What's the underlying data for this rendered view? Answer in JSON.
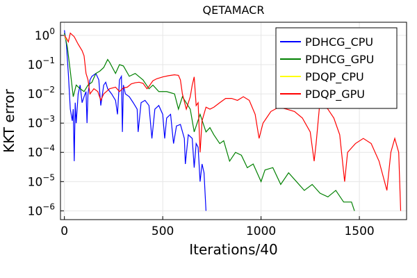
{
  "chart_data": {
    "type": "line",
    "title": "QETAMACR",
    "xlabel": "Iterations/40",
    "ylabel": "KKT error",
    "yscale": "log10",
    "xlim": [
      -20,
      1740
    ],
    "ylim_exp": [
      -6.3,
      0.45
    ],
    "xticks": [
      0,
      500,
      1000,
      1500
    ],
    "yticks": [
      {
        "exp": 0,
        "base": "10",
        "sup": "0"
      },
      {
        "exp": -1,
        "base": "10",
        "sup": "−1"
      },
      {
        "exp": -2,
        "base": "10",
        "sup": "−2"
      },
      {
        "exp": -3,
        "base": "10",
        "sup": "−3"
      },
      {
        "exp": -4,
        "base": "10",
        "sup": "−4"
      },
      {
        "exp": -5,
        "base": "10",
        "sup": "−5"
      },
      {
        "exp": -6,
        "base": "10",
        "sup": "−6"
      }
    ],
    "grid": true,
    "legend_position": "top-right",
    "series": [
      {
        "name": "PDHCG_CPU",
        "color": "#0000ff",
        "points": [
          [
            0,
            1.5
          ],
          [
            10,
            0.5
          ],
          [
            20,
            0.05
          ],
          [
            30,
            0.003
          ],
          [
            40,
            0.0012
          ],
          [
            45,
            0.003
          ],
          [
            50,
            5e-05
          ],
          [
            55,
            0.005
          ],
          [
            60,
            0.001
          ],
          [
            70,
            0.01
          ],
          [
            80,
            0.02
          ],
          [
            90,
            0.005
          ],
          [
            100,
            0.008
          ],
          [
            110,
            0.012
          ],
          [
            115,
            0.001
          ],
          [
            120,
            0.01
          ],
          [
            130,
            0.03
          ],
          [
            140,
            0.04
          ],
          [
            160,
            0.05
          ],
          [
            175,
            0.03
          ],
          [
            185,
            0.004
          ],
          [
            200,
            0.02
          ],
          [
            210,
            0.025
          ],
          [
            220,
            0.015
          ],
          [
            240,
            0.01
          ],
          [
            260,
            0.006
          ],
          [
            270,
            0.002
          ],
          [
            280,
            0.03
          ],
          [
            290,
            0.04
          ],
          [
            295,
            0.0005
          ],
          [
            300,
            0.02
          ],
          [
            310,
            0.01
          ],
          [
            330,
            0.008
          ],
          [
            350,
            0.005
          ],
          [
            370,
            0.003
          ],
          [
            375,
            0.0005
          ],
          [
            390,
            0.005
          ],
          [
            410,
            0.006
          ],
          [
            430,
            0.004
          ],
          [
            445,
            0.0003
          ],
          [
            460,
            0.003
          ],
          [
            480,
            0.004
          ],
          [
            500,
            0.002
          ],
          [
            510,
            0.0003
          ],
          [
            520,
            0.0015
          ],
          [
            540,
            0.002
          ],
          [
            555,
            0.0002
          ],
          [
            570,
            0.0008
          ],
          [
            590,
            0.0009
          ],
          [
            610,
            0.0003
          ],
          [
            615,
            4e-05
          ],
          [
            630,
            0.0004
          ],
          [
            650,
            0.0003
          ],
          [
            660,
            3e-05
          ],
          [
            670,
            0.0002
          ],
          [
            680,
            0.00015
          ],
          [
            690,
            1e-05
          ],
          [
            700,
            4e-05
          ],
          [
            710,
            2e-05
          ],
          [
            720,
            1e-06
          ]
        ]
      },
      {
        "name": "PDHCG_GPU",
        "color": "#008000",
        "points": [
          [
            0,
            1.2
          ],
          [
            15,
            0.4
          ],
          [
            30,
            0.06
          ],
          [
            45,
            0.008
          ],
          [
            60,
            0.02
          ],
          [
            80,
            0.015
          ],
          [
            100,
            0.012
          ],
          [
            120,
            0.02
          ],
          [
            140,
            0.025
          ],
          [
            160,
            0.05
          ],
          [
            180,
            0.06
          ],
          [
            200,
            0.08
          ],
          [
            220,
            0.15
          ],
          [
            230,
            0.12
          ],
          [
            260,
            0.05
          ],
          [
            280,
            0.1
          ],
          [
            300,
            0.09
          ],
          [
            330,
            0.04
          ],
          [
            360,
            0.05
          ],
          [
            400,
            0.03
          ],
          [
            430,
            0.015
          ],
          [
            450,
            0.02
          ],
          [
            480,
            0.012
          ],
          [
            520,
            0.012
          ],
          [
            560,
            0.01
          ],
          [
            580,
            0.003
          ],
          [
            600,
            0.008
          ],
          [
            640,
            0.003
          ],
          [
            660,
            0.0005
          ],
          [
            690,
            0.002
          ],
          [
            720,
            0.0005
          ],
          [
            740,
            0.0007
          ],
          [
            760,
            0.0004
          ],
          [
            790,
            0.0002
          ],
          [
            810,
            0.00025
          ],
          [
            840,
            5e-05
          ],
          [
            870,
            0.0001
          ],
          [
            900,
            8e-05
          ],
          [
            930,
            3e-05
          ],
          [
            960,
            4e-05
          ],
          [
            980,
            2e-05
          ],
          [
            1000,
            1e-05
          ],
          [
            1020,
            2.5e-05
          ],
          [
            1060,
            3e-05
          ],
          [
            1100,
            8e-06
          ],
          [
            1140,
            2e-05
          ],
          [
            1180,
            1e-05
          ],
          [
            1220,
            5e-06
          ],
          [
            1260,
            8e-06
          ],
          [
            1300,
            4e-06
          ],
          [
            1340,
            3e-06
          ],
          [
            1380,
            5e-06
          ],
          [
            1420,
            2e-06
          ],
          [
            1460,
            2e-06
          ],
          [
            1475,
            1e-06
          ]
        ]
      },
      {
        "name": "PDQP_CPU",
        "color": "#ffff00",
        "points": [
          [
            0,
            1.0
          ],
          [
            5,
            0.9
          ],
          [
            10,
            0.7
          ]
        ]
      },
      {
        "name": "PDQP_GPU",
        "color": "#ff0000",
        "points": [
          [
            0,
            1.0
          ],
          [
            10,
            0.8
          ],
          [
            20,
            0.6
          ],
          [
            30,
            1.2
          ],
          [
            50,
            0.9
          ],
          [
            70,
            0.5
          ],
          [
            90,
            0.3
          ],
          [
            100,
            0.2
          ],
          [
            110,
            0.05
          ],
          [
            120,
            0.03
          ],
          [
            130,
            0.01
          ],
          [
            150,
            0.015
          ],
          [
            170,
            0.012
          ],
          [
            185,
            0.006
          ],
          [
            200,
            0.01
          ],
          [
            230,
            0.015
          ],
          [
            260,
            0.017
          ],
          [
            280,
            0.012
          ],
          [
            300,
            0.016
          ],
          [
            320,
            0.017
          ],
          [
            340,
            0.022
          ],
          [
            360,
            0.024
          ],
          [
            380,
            0.025
          ],
          [
            400,
            0.023
          ],
          [
            420,
            0.015
          ],
          [
            430,
            0.018
          ],
          [
            450,
            0.028
          ],
          [
            470,
            0.033
          ],
          [
            500,
            0.038
          ],
          [
            530,
            0.042
          ],
          [
            560,
            0.045
          ],
          [
            580,
            0.043
          ],
          [
            590,
            0.03
          ],
          [
            600,
            0.01
          ],
          [
            620,
            0.003
          ],
          [
            640,
            0.008
          ],
          [
            650,
            0.02
          ],
          [
            660,
            0.038
          ],
          [
            670,
            0.004
          ],
          [
            680,
            0.005
          ],
          [
            690,
            0.0001
          ],
          [
            700,
            0.0012
          ],
          [
            720,
            0.0035
          ],
          [
            740,
            0.003
          ],
          [
            760,
            0.0035
          ],
          [
            790,
            0.005
          ],
          [
            820,
            0.007
          ],
          [
            850,
            0.007
          ],
          [
            880,
            0.006
          ],
          [
            910,
            0.008
          ],
          [
            940,
            0.006
          ],
          [
            970,
            0.002
          ],
          [
            990,
            0.0003
          ],
          [
            1010,
            0.001
          ],
          [
            1050,
            0.0025
          ],
          [
            1090,
            0.0035
          ],
          [
            1130,
            0.003
          ],
          [
            1170,
            0.0025
          ],
          [
            1210,
            0.0015
          ],
          [
            1250,
            0.0005
          ],
          [
            1270,
            5e-05
          ],
          [
            1280,
            0.0002
          ],
          [
            1300,
            0.006
          ],
          [
            1320,
            0.004
          ],
          [
            1340,
            0.003
          ],
          [
            1370,
            0.0015
          ],
          [
            1400,
            0.0004
          ],
          [
            1425,
            1e-05
          ],
          [
            1440,
            0.0001
          ],
          [
            1480,
            0.0002
          ],
          [
            1520,
            0.0003
          ],
          [
            1560,
            0.0002
          ],
          [
            1600,
            5e-05
          ],
          [
            1640,
            5e-06
          ],
          [
            1660,
            0.0001
          ],
          [
            1680,
            0.0003
          ],
          [
            1700,
            0.0001
          ],
          [
            1710,
            1e-06
          ]
        ]
      }
    ]
  }
}
